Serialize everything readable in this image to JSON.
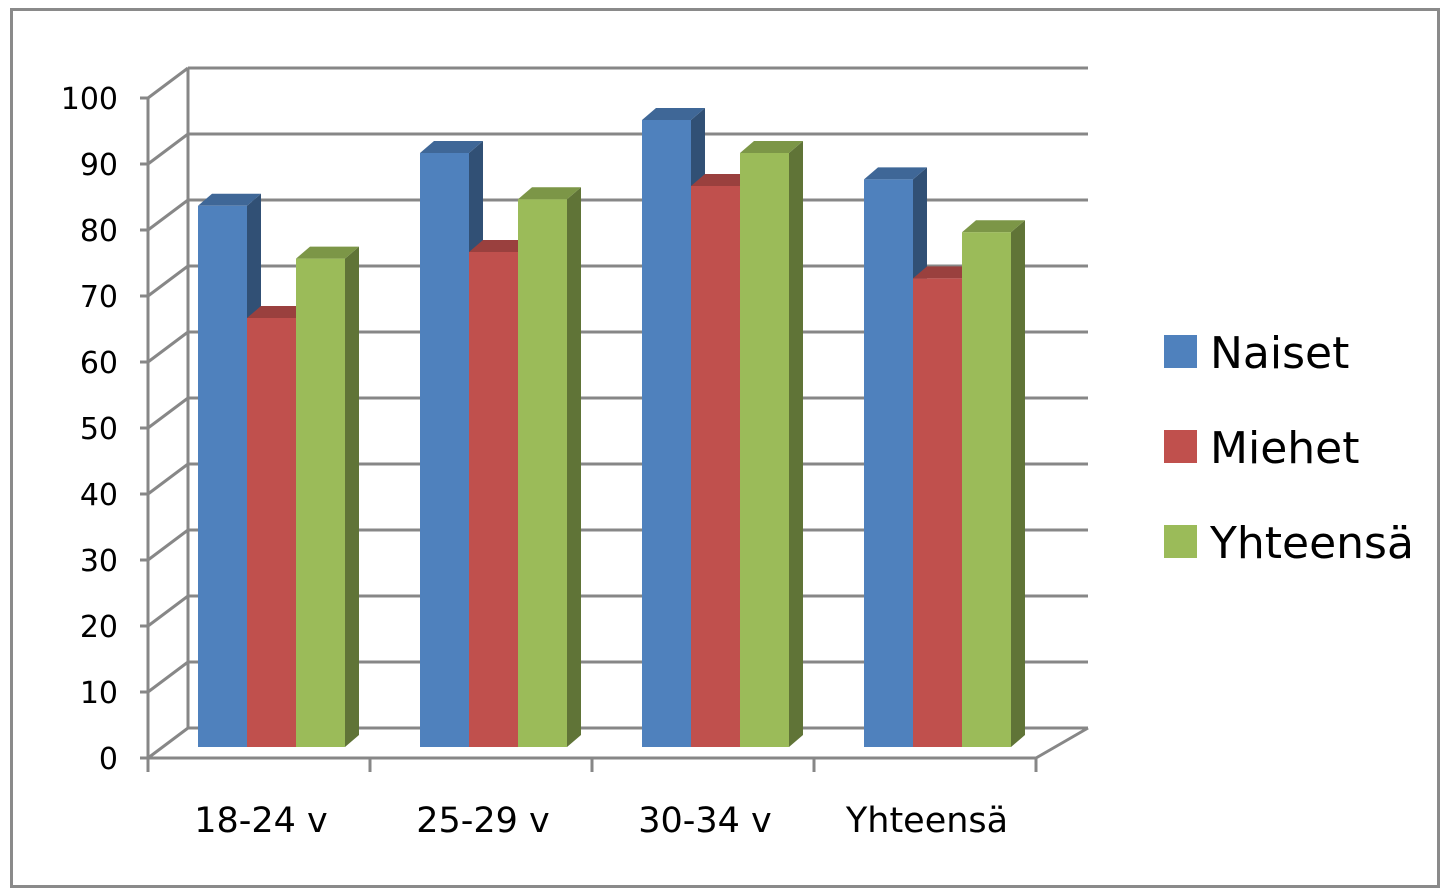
{
  "chart_data": {
    "type": "bar",
    "style": "3d-clustered-column",
    "categories": [
      "18-24 v",
      "25-29 v",
      "30-34 v",
      "Yhteensä"
    ],
    "series": [
      {
        "name": "Naiset",
        "values": [
          82,
          90,
          95,
          86
        ],
        "color": "#4f81bd"
      },
      {
        "name": "Miehet",
        "values": [
          65,
          75,
          85,
          71
        ],
        "color": "#c0504d"
      },
      {
        "name": "Yhteensä",
        "values": [
          74,
          83,
          90,
          78
        ],
        "color": "#9bbb59"
      }
    ],
    "ylim": [
      0,
      100
    ],
    "yticks": [
      "0",
      "10",
      "20",
      "30",
      "40",
      "50",
      "60",
      "70",
      "80",
      "90",
      "100"
    ],
    "grid": true,
    "legend": "right"
  }
}
